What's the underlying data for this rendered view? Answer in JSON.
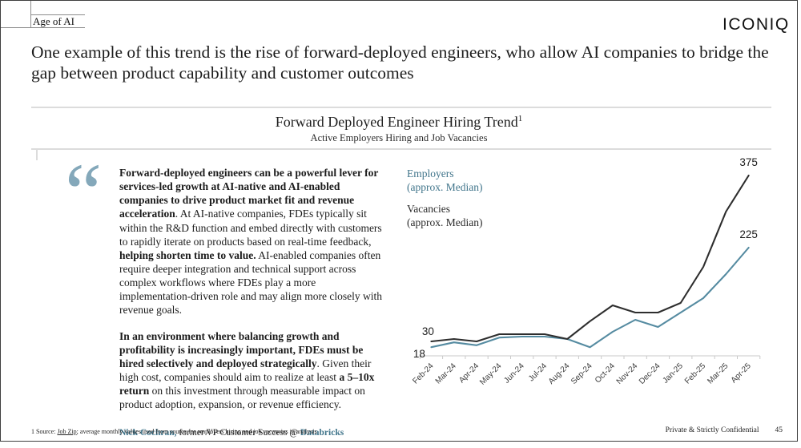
{
  "header": {
    "eyebrow": "Age of AI",
    "logo": "ICONIQ",
    "headline": "One example of this trend is the rise of forward-deployed engineers, who allow AI companies to bridge the gap between product capability and customer outcomes"
  },
  "chart_header": {
    "title": "Forward Deployed Engineer Hiring Trend",
    "title_superscript": "1",
    "subtitle": "Active Employers Hiring and Job Vacancies"
  },
  "quote": {
    "mark": "“",
    "p1_bold1": "Forward-deployed engineers can be a powerful lever for services-led growth at AI-native and AI-enabled companies to drive product market fit and revenue acceleration",
    "p1_normal1": ". At AI-native companies, FDEs typically sit within the R&D function and embed directly with customers to rapidly iterate on products based on real-time feedback, ",
    "p1_bold2": "helping shorten time to value.",
    "p1_normal2": " AI-enabled companies often require deeper integration and technical support across complex workflows where FDEs play a more implementation-driven role and may align more closely with revenue goals.",
    "p2_bold1": "In an environment where balancing growth and profitability is increasingly important, FDEs must be hired selectively and deployed strategically",
    "p2_normal1": ". Given their high cost, companies should aim to realize at least ",
    "p2_bold2": "a 5–10x return",
    "p2_normal2": " on this investment through measurable impact on product adoption, expansion, or revenue efficiency.",
    "attribution_name": "Nick Cochran,",
    "attribution_middle": " former VP Customer Success @ ",
    "attribution_company": "Databricks"
  },
  "legend": {
    "items": [
      {
        "label": "Employers",
        "sublabel": "(approx. Median)",
        "color": "#41758b"
      },
      {
        "label": "Vacancies",
        "sublabel": "(approx. Median)",
        "color": "#2b2b2b"
      }
    ]
  },
  "chart_data": {
    "type": "line",
    "title": "Forward Deployed Engineer Hiring Trend",
    "subtitle": "Active Employers Hiring and Job Vacancies",
    "categories": [
      "Feb-24",
      "Mar-24",
      "Apr-24",
      "May-24",
      "Jun-24",
      "Jul-24",
      "Aug-24",
      "Sep-24",
      "Oct-24",
      "Nov-24",
      "Dec-24",
      "Jan-25",
      "Feb-25",
      "Mar-25",
      "Apr-25"
    ],
    "ylim": [
      0,
      420
    ],
    "grid": false,
    "legend_position": "top-left",
    "series": [
      {
        "name": "Vacancies (approx. Median)",
        "color": "#2e2e2e",
        "values": [
          30,
          35,
          30,
          45,
          45,
          45,
          35,
          72,
          105,
          90,
          90,
          110,
          185,
          300,
          375
        ],
        "start_label": {
          "text": "30",
          "dx": -4,
          "dy": -8
        },
        "end_label": {
          "text": "375",
          "dx": 0,
          "dy": -12
        }
      },
      {
        "name": "Employers (approx. Median)",
        "color": "#558ba1",
        "values": [
          18,
          28,
          22,
          38,
          40,
          40,
          35,
          18,
          50,
          75,
          60,
          90,
          120,
          170,
          225
        ],
        "start_label": {
          "text": "18",
          "dx": -15,
          "dy": 13
        },
        "end_label": {
          "text": "225",
          "dx": 0,
          "dy": -12
        }
      }
    ]
  },
  "footer": {
    "source_prefix": "1 Source: ",
    "source_link": "Job Zip",
    "source_suffix": "; average monthly values used from source for employers hiring and job vacancies in analysis",
    "confidential": "Private & Strictly Confidential",
    "page_number": "45"
  }
}
